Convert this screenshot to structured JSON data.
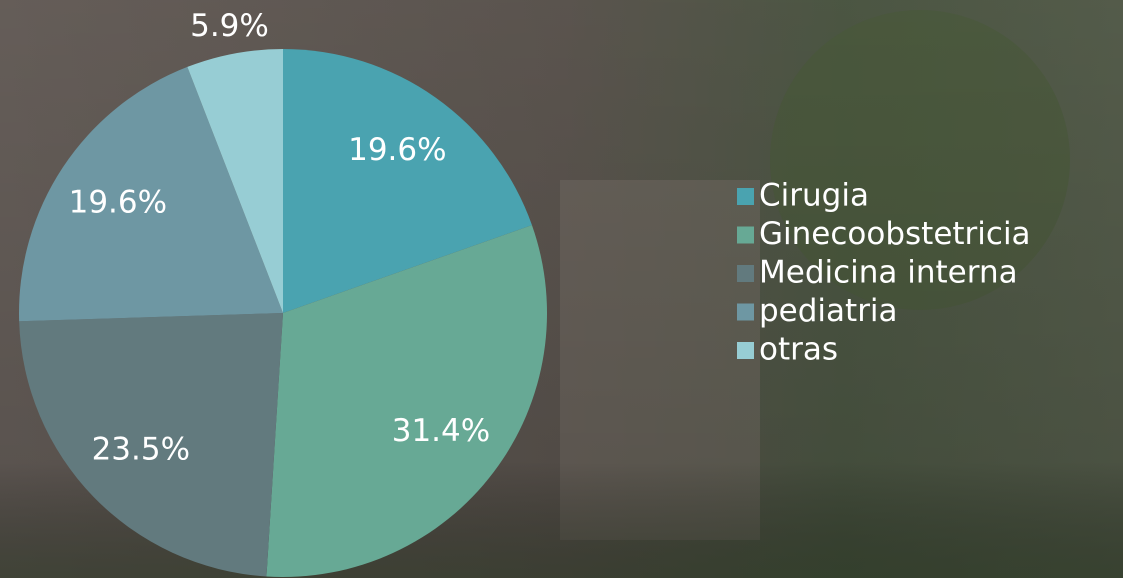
{
  "chart_data": {
    "type": "pie",
    "categories": [
      "Cirugia",
      "Ginecoobstetricia",
      "Medicina interna",
      "pediatria",
      "otras"
    ],
    "values": [
      19.6,
      31.4,
      23.5,
      19.6,
      5.9
    ],
    "value_labels": [
      "19.6%",
      "31.4%",
      "23.5%",
      "19.6%",
      "5.9%"
    ],
    "colors": [
      "#4aa3b0",
      "#67a995",
      "#627a7e",
      "#6e97a3",
      "#97cdd4"
    ],
    "legend": "right"
  }
}
